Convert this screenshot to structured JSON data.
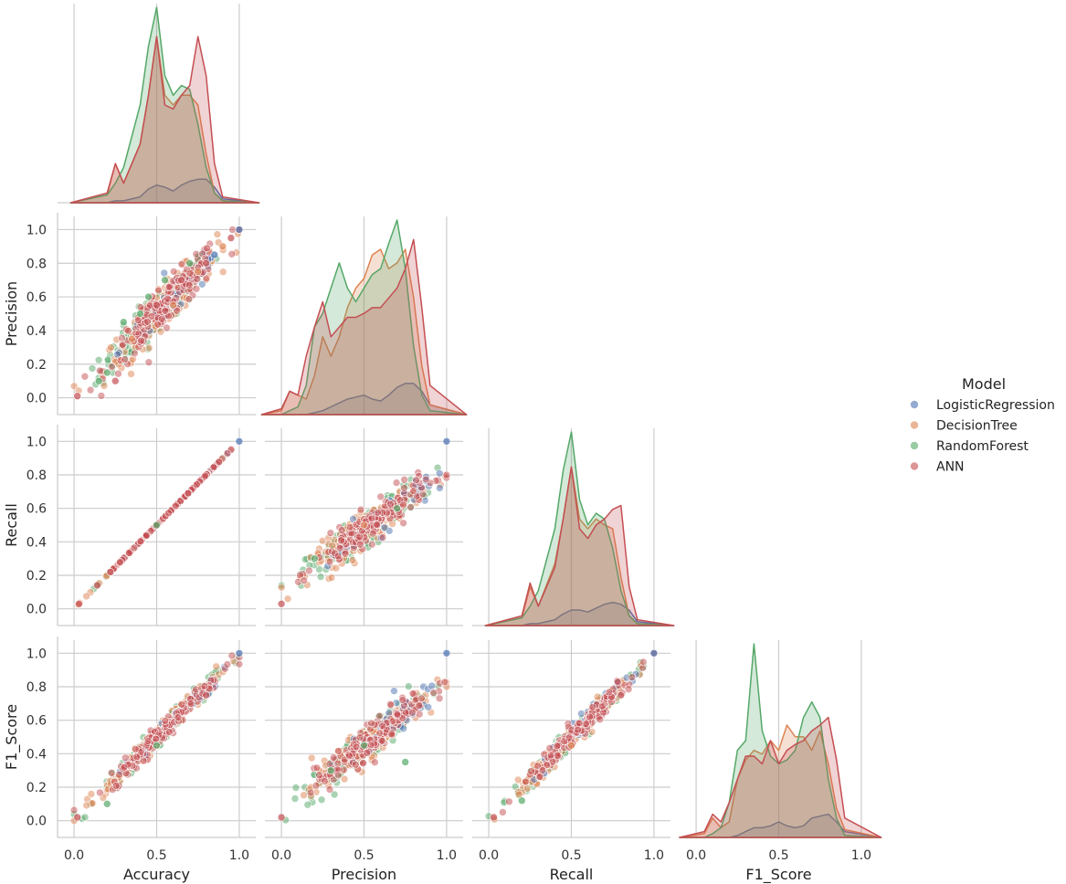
{
  "chart_data": {
    "type": "scatter",
    "subtype": "pairplot-corner",
    "variables": [
      "Accuracy",
      "Precision",
      "Recall",
      "F1_Score"
    ],
    "axis_range": [
      -0.1,
      1.1
    ],
    "tick_values": [
      0.0,
      0.5,
      1.0
    ],
    "tick_labels": [
      "0.0",
      "0.5",
      "1.0"
    ],
    "y_tick_values": [
      0.0,
      0.2,
      0.4,
      0.6,
      0.8,
      1.0
    ],
    "y_tick_labels": [
      "0.0",
      "0.2",
      "0.4",
      "0.6",
      "0.8",
      "1.0"
    ],
    "grid": true,
    "diagonal": "kde",
    "legend": {
      "title": "Model",
      "placement": "right",
      "entries": [
        "LogisticRegression",
        "DecisionTree",
        "RandomForest",
        "ANN"
      ]
    },
    "series": [
      {
        "name": "LogisticRegression",
        "color": "#4c72b0"
      },
      {
        "name": "DecisionTree",
        "color": "#dd8452"
      },
      {
        "name": "RandomForest",
        "color": "#55a868"
      },
      {
        "name": "ANN",
        "color": "#c44e52"
      }
    ],
    "kde": {
      "Accuracy": {
        "x": [
          -0.02,
          0.2,
          0.25,
          0.3,
          0.4,
          0.45,
          0.5,
          0.55,
          0.6,
          0.65,
          0.7,
          0.75,
          0.8,
          0.85,
          0.9,
          1.12
        ],
        "LogisticRegression": [
          0,
          0,
          0.01,
          0.01,
          0.03,
          0.07,
          0.09,
          0.08,
          0.06,
          0.09,
          0.11,
          0.12,
          0.12,
          0.08,
          0.02,
          0
        ],
        "DecisionTree": [
          0,
          0.04,
          0.2,
          0.1,
          0.3,
          0.55,
          0.85,
          0.55,
          0.5,
          0.55,
          0.55,
          0.5,
          0.25,
          0.05,
          0.01,
          0
        ],
        "RandomForest": [
          0,
          0.04,
          0.1,
          0.18,
          0.5,
          0.8,
          1.0,
          0.65,
          0.55,
          0.6,
          0.58,
          0.4,
          0.18,
          0.05,
          0.01,
          0
        ],
        "ANN": [
          0,
          0.05,
          0.2,
          0.1,
          0.3,
          0.55,
          0.85,
          0.5,
          0.48,
          0.55,
          0.6,
          0.85,
          0.65,
          0.2,
          0.03,
          0
        ]
      },
      "Precision": {
        "x": [
          -0.12,
          0.0,
          0.05,
          0.1,
          0.15,
          0.2,
          0.25,
          0.3,
          0.35,
          0.4,
          0.45,
          0.5,
          0.55,
          0.6,
          0.65,
          0.7,
          0.75,
          0.8,
          0.85,
          0.9,
          1.12
        ],
        "LogisticRegression": [
          0,
          0,
          0,
          0,
          0,
          0.01,
          0.02,
          0.04,
          0.06,
          0.08,
          0.09,
          0.1,
          0.08,
          0.07,
          0.1,
          0.14,
          0.16,
          0.16,
          0.12,
          0.05,
          0
        ],
        "DecisionTree": [
          0,
          0.02,
          0.12,
          0.1,
          0.08,
          0.2,
          0.4,
          0.3,
          0.4,
          0.55,
          0.65,
          0.7,
          0.82,
          0.85,
          0.75,
          0.78,
          0.85,
          0.6,
          0.25,
          0.05,
          0
        ],
        "RandomForest": [
          0,
          0,
          0.02,
          0.04,
          0.15,
          0.45,
          0.52,
          0.65,
          0.78,
          0.65,
          0.58,
          0.65,
          0.72,
          0.75,
          0.88,
          1.0,
          0.75,
          0.35,
          0.1,
          0.02,
          0
        ],
        "ANN": [
          0,
          0.03,
          0.12,
          0.1,
          0.3,
          0.45,
          0.58,
          0.4,
          0.45,
          0.5,
          0.5,
          0.52,
          0.55,
          0.55,
          0.6,
          0.65,
          0.75,
          0.9,
          0.55,
          0.15,
          0
        ]
      },
      "Recall": {
        "x": [
          -0.02,
          0.2,
          0.25,
          0.3,
          0.4,
          0.45,
          0.5,
          0.55,
          0.6,
          0.65,
          0.7,
          0.75,
          0.8,
          0.85,
          0.9,
          1.12
        ],
        "LogisticRegression": [
          0,
          0,
          0.01,
          0.01,
          0.03,
          0.06,
          0.08,
          0.08,
          0.07,
          0.09,
          0.11,
          0.12,
          0.11,
          0.08,
          0.02,
          0
        ],
        "DecisionTree": [
          0,
          0.04,
          0.2,
          0.1,
          0.32,
          0.55,
          0.82,
          0.55,
          0.5,
          0.55,
          0.52,
          0.5,
          0.25,
          0.05,
          0.01,
          0
        ],
        "RandomForest": [
          0,
          0.04,
          0.1,
          0.18,
          0.5,
          0.8,
          1.0,
          0.65,
          0.52,
          0.58,
          0.55,
          0.4,
          0.18,
          0.05,
          0.01,
          0
        ],
        "ANN": [
          0,
          0.05,
          0.22,
          0.1,
          0.3,
          0.55,
          0.82,
          0.5,
          0.45,
          0.52,
          0.55,
          0.6,
          0.62,
          0.2,
          0.03,
          0
        ]
      },
      "F1_Score": {
        "x": [
          -0.1,
          0.05,
          0.1,
          0.15,
          0.2,
          0.25,
          0.3,
          0.35,
          0.4,
          0.45,
          0.5,
          0.55,
          0.6,
          0.65,
          0.7,
          0.75,
          0.8,
          0.85,
          0.9,
          1.12
        ],
        "LogisticRegression": [
          0,
          0,
          0,
          0,
          0,
          0.01,
          0.03,
          0.05,
          0.05,
          0.06,
          0.08,
          0.06,
          0.05,
          0.06,
          0.1,
          0.11,
          0.12,
          0.08,
          0.03,
          0
        ],
        "DecisionTree": [
          0,
          0.02,
          0.1,
          0.05,
          0.08,
          0.3,
          0.4,
          0.45,
          0.43,
          0.5,
          0.45,
          0.58,
          0.52,
          0.52,
          0.45,
          0.55,
          0.38,
          0.15,
          0.04,
          0
        ],
        "RandomForest": [
          0,
          0,
          0.02,
          0.05,
          0.18,
          0.45,
          0.5,
          1.0,
          0.55,
          0.42,
          0.38,
          0.4,
          0.45,
          0.62,
          0.7,
          0.62,
          0.3,
          0.1,
          0.01,
          0
        ],
        "ANN": [
          0,
          0.03,
          0.12,
          0.08,
          0.18,
          0.3,
          0.42,
          0.42,
          0.38,
          0.5,
          0.38,
          0.45,
          0.48,
          0.5,
          0.55,
          0.58,
          0.62,
          0.4,
          0.1,
          0
        ]
      }
    },
    "scatter_points": {
      "Accuracy_vs_Precision": [
        [
          0.02,
          0.01,
          "ANN"
        ],
        [
          0.15,
          0.1,
          "RandomForest"
        ],
        [
          0.2,
          0.15,
          "RandomForest"
        ],
        [
          0.25,
          0.1,
          "ANN"
        ],
        [
          0.3,
          0.45,
          "RandomForest"
        ],
        [
          0.35,
          0.35,
          "DecisionTree"
        ],
        [
          0.4,
          0.5,
          "RandomForest"
        ],
        [
          0.45,
          0.6,
          "RandomForest"
        ],
        [
          0.5,
          0.55,
          "ANN"
        ],
        [
          0.55,
          0.7,
          "RandomForest"
        ],
        [
          0.6,
          0.55,
          "DecisionTree"
        ],
        [
          0.65,
          0.7,
          "ANN"
        ],
        [
          0.7,
          0.8,
          "RandomForest"
        ],
        [
          0.75,
          0.75,
          "DecisionTree"
        ],
        [
          0.8,
          0.8,
          "ANN"
        ],
        [
          0.85,
          0.85,
          "LogisticRegression"
        ],
        [
          0.9,
          0.9,
          "DecisionTree"
        ],
        [
          0.95,
          0.95,
          "ANN"
        ],
        [
          1.0,
          1.0,
          "LogisticRegression"
        ]
      ],
      "Accuracy_vs_Recall": [
        [
          0.03,
          0.03,
          "ANN"
        ],
        [
          0.14,
          0.14,
          "ANN"
        ],
        [
          0.5,
          0.5,
          "RandomForest"
        ],
        [
          1.0,
          1.0,
          "LogisticRegression"
        ]
      ],
      "Accuracy_vs_F1_Score": [
        [
          0.02,
          0.02,
          "ANN"
        ],
        [
          0.2,
          0.1,
          "RandomForest"
        ],
        [
          0.5,
          0.45,
          "RandomForest"
        ],
        [
          0.8,
          0.75,
          "ANN"
        ],
        [
          1.0,
          1.0,
          "LogisticRegression"
        ]
      ],
      "Precision_vs_Recall": [
        [
          0.0,
          0.03,
          "ANN"
        ],
        [
          0.2,
          0.3,
          "RandomForest"
        ],
        [
          0.5,
          0.5,
          "DecisionTree"
        ],
        [
          0.7,
          0.6,
          "RandomForest"
        ],
        [
          1.0,
          1.0,
          "LogisticRegression"
        ]
      ],
      "Precision_vs_F1_Score": [
        [
          0.0,
          0.02,
          "ANN"
        ],
        [
          0.3,
          0.3,
          "RandomForest"
        ],
        [
          0.5,
          0.45,
          "RandomForest"
        ],
        [
          0.75,
          0.35,
          "RandomForest"
        ],
        [
          1.0,
          1.0,
          "LogisticRegression"
        ]
      ],
      "Recall_vs_F1_Score": [
        [
          0.03,
          0.02,
          "ANN"
        ],
        [
          0.2,
          0.12,
          "RandomForest"
        ],
        [
          0.5,
          0.45,
          "DecisionTree"
        ],
        [
          0.8,
          0.75,
          "ANN"
        ],
        [
          1.0,
          1.0,
          "LogisticRegression"
        ]
      ]
    }
  }
}
